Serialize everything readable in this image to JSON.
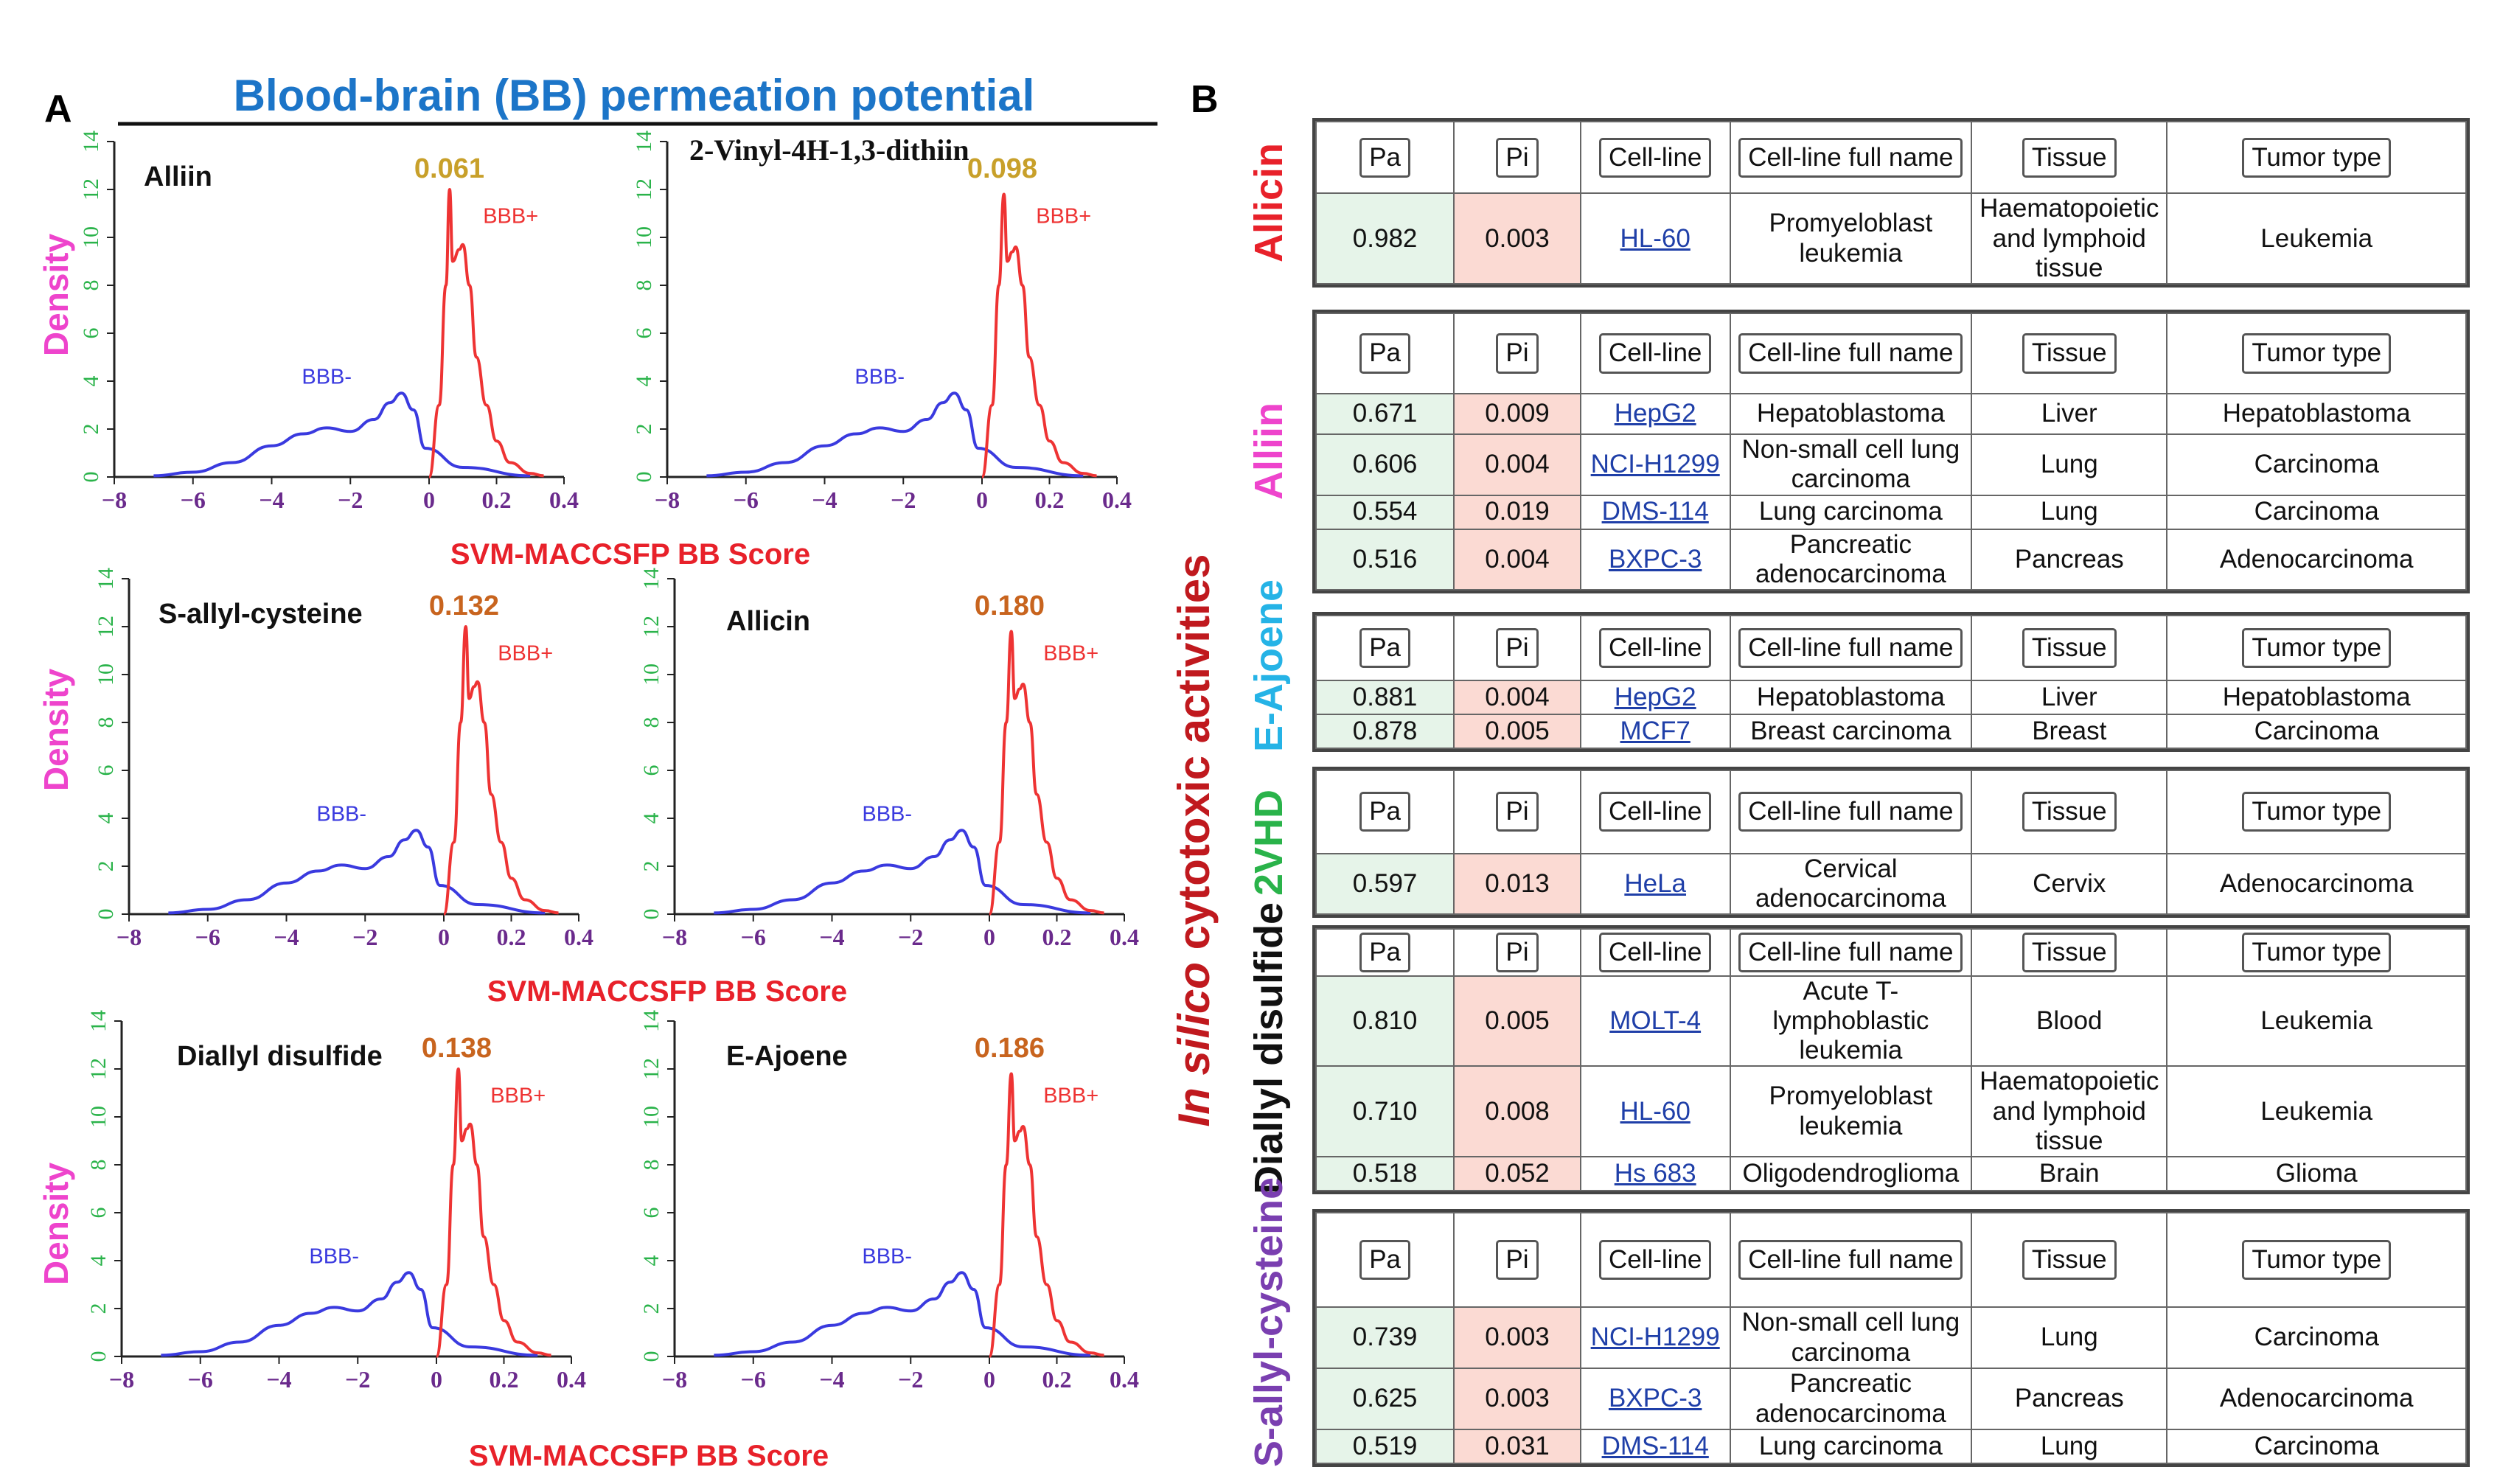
{
  "panel_a": {
    "letter": "A",
    "title": "Blood-brain (BB) permeation potential",
    "ylabel": "Density",
    "xlabel": "SVM-MACCSFP BB Score",
    "neg_label": "BBB-",
    "pos_label": "BBB+"
  },
  "panel_b": {
    "letter": "B",
    "side_title_italic": "In silico",
    "side_title_rest": " cytotoxic activities",
    "headers": [
      "Pa",
      "Pi",
      "Cell-line",
      "Cell-line full name",
      "Tissue",
      "Tumor type"
    ],
    "compounds": [
      {
        "name": "Allicin",
        "color": "#e8212a",
        "rows": [
          [
            "0.982",
            "0.003",
            "HL-60",
            "Promyeloblast leukemia",
            "Haematopoietic and lymphoid tissue",
            "Leukemia"
          ]
        ]
      },
      {
        "name": "Alliin",
        "color": "#ee44cc",
        "rows": [
          [
            "0.671",
            "0.009",
            "HepG2",
            "Hepatoblastoma",
            "Liver",
            "Hepatoblastoma"
          ],
          [
            "0.606",
            "0.004",
            "NCI-H1299",
            "Non-small cell lung carcinoma",
            "Lung",
            "Carcinoma"
          ],
          [
            "0.554",
            "0.019",
            "DMS-114",
            "Lung carcinoma",
            "Lung",
            "Carcinoma"
          ],
          [
            "0.516",
            "0.004",
            "BXPC-3",
            "Pancreatic adenocarcinoma",
            "Pancreas",
            "Adenocarcinoma"
          ]
        ]
      },
      {
        "name": "E-Ajoene",
        "color": "#25b3e6",
        "rows": [
          [
            "0.881",
            "0.004",
            "HepG2",
            "Hepatoblastoma",
            "Liver",
            "Hepatoblastoma"
          ],
          [
            "0.878",
            "0.005",
            "MCF7",
            "Breast carcinoma",
            "Breast",
            "Carcinoma"
          ]
        ]
      },
      {
        "name": "2VHD",
        "color": "#2ab34a",
        "rows": [
          [
            "0.597",
            "0.013",
            "HeLa",
            "Cervical adenocarcinoma",
            "Cervix",
            "Adenocarcinoma"
          ]
        ]
      },
      {
        "name": "Diallyl disulfide",
        "color": "#111111",
        "rows": [
          [
            "0.810",
            "0.005",
            "MOLT-4",
            "Acute T-lymphoblastic leukemia",
            "Blood",
            "Leukemia"
          ],
          [
            "0.710",
            "0.008",
            "HL-60",
            "Promyeloblast leukemia",
            "Haematopoietic and lymphoid tissue",
            "Leukemia"
          ],
          [
            "0.518",
            "0.052",
            "Hs 683",
            "Oligodendroglioma",
            "Brain",
            "Glioma"
          ]
        ]
      },
      {
        "name": "S-allyl-cysteine",
        "color": "#7a3fb0",
        "rows": [
          [
            "0.739",
            "0.003",
            "NCI-H1299",
            "Non-small cell lung carcinoma",
            "Lung",
            "Carcinoma"
          ],
          [
            "0.625",
            "0.003",
            "BXPC-3",
            "Pancreatic adenocarcinoma",
            "Pancreas",
            "Adenocarcinoma"
          ],
          [
            "0.519",
            "0.031",
            "DMS-114",
            "Lung carcinoma",
            "Lung",
            "Carcinoma"
          ]
        ]
      }
    ]
  },
  "colors": {
    "neg_curve": "#3a3adf",
    "pos_curve": "#ee3333",
    "y_ticks": "#2ab34a",
    "x_ticks": "#6a2a8c",
    "density_label": "#ee44cc",
    "xlabel": "#e8212a",
    "title": "#1c75c8",
    "threshold_gold": "#c8a02a",
    "threshold_orange": "#c8641e",
    "side_title": "#c0191e"
  },
  "chart_data": [
    {
      "type": "line",
      "title": "Alliin",
      "threshold": "0.061",
      "xlim": [
        -8,
        0.4
      ],
      "ylim": [
        0,
        14
      ],
      "xticks": [
        "−8",
        "−6",
        "−4",
        "−2",
        "0",
        "0.2",
        "0.4"
      ],
      "yticks": [
        "0",
        "2",
        "4",
        "6",
        "8",
        "10",
        "12",
        "14"
      ],
      "series": [
        {
          "name": "BBB-",
          "x": [
            -7,
            -6,
            -5,
            -4,
            -3.2,
            -2.6,
            -2,
            -1.4,
            -1,
            -0.7,
            -0.4,
            -0.1,
            0.1,
            0.3
          ],
          "y": [
            0.05,
            0.2,
            0.6,
            1.3,
            1.8,
            2.05,
            1.9,
            2.4,
            3.1,
            3.5,
            2.8,
            1.2,
            0.4,
            0.05
          ]
        },
        {
          "name": "BBB+",
          "x": [
            0,
            0.03,
            0.05,
            0.061,
            0.07,
            0.09,
            0.1,
            0.12,
            0.14,
            0.17,
            0.2,
            0.24,
            0.3,
            0.34
          ],
          "y": [
            0,
            3,
            8,
            12,
            9,
            9.5,
            9.7,
            8,
            5,
            3,
            1.5,
            0.6,
            0.15,
            0.05
          ]
        }
      ]
    },
    {
      "type": "line",
      "title": "2-Vinyl-4H-1,3-dithiin",
      "threshold": "0.098",
      "xlim": [
        -8,
        0.4
      ],
      "ylim": [
        0,
        14
      ],
      "xticks": [
        "−8",
        "−6",
        "−4",
        "−2",
        "0",
        "0.2",
        "0.4"
      ],
      "yticks": [
        "0",
        "2",
        "4",
        "6",
        "8",
        "10",
        "12",
        "14"
      ],
      "series": [
        {
          "name": "BBB-",
          "x": [
            -7,
            -6,
            -5,
            -4,
            -3.2,
            -2.6,
            -2,
            -1.4,
            -1,
            -0.7,
            -0.4,
            -0.1,
            0.1,
            0.3
          ],
          "y": [
            0.05,
            0.2,
            0.6,
            1.3,
            1.8,
            2.05,
            1.9,
            2.4,
            3.1,
            3.5,
            2.8,
            1.2,
            0.4,
            0.05
          ]
        },
        {
          "name": "BBB+",
          "x": [
            0,
            0.03,
            0.05,
            0.065,
            0.075,
            0.09,
            0.1,
            0.12,
            0.14,
            0.17,
            0.2,
            0.24,
            0.3,
            0.34
          ],
          "y": [
            0,
            3,
            8,
            11.8,
            9,
            9.4,
            9.6,
            8,
            5,
            3,
            1.5,
            0.6,
            0.15,
            0.05
          ]
        }
      ]
    },
    {
      "type": "line",
      "title": "S-allyl-cysteine",
      "threshold": "0.132",
      "xlim": [
        -8,
        0.4
      ],
      "ylim": [
        0,
        14
      ],
      "xticks": [
        "−8",
        "−6",
        "−4",
        "−2",
        "0",
        "0.2",
        "0.4"
      ],
      "yticks": [
        "0",
        "2",
        "4",
        "6",
        "8",
        "10",
        "12",
        "14"
      ],
      "series": [
        {
          "name": "BBB-",
          "x": [
            -7,
            -6,
            -5,
            -4,
            -3.2,
            -2.6,
            -2,
            -1.4,
            -1,
            -0.7,
            -0.4,
            -0.1,
            0.1,
            0.3
          ],
          "y": [
            0.05,
            0.2,
            0.6,
            1.3,
            1.8,
            2.05,
            1.9,
            2.4,
            3.1,
            3.5,
            2.8,
            1.2,
            0.4,
            0.05
          ]
        },
        {
          "name": "BBB+",
          "x": [
            0,
            0.03,
            0.05,
            0.065,
            0.075,
            0.09,
            0.1,
            0.12,
            0.14,
            0.17,
            0.2,
            0.24,
            0.3,
            0.34
          ],
          "y": [
            0,
            3,
            8,
            12,
            9,
            9.5,
            9.7,
            8,
            5,
            3,
            1.5,
            0.6,
            0.15,
            0.05
          ]
        }
      ]
    },
    {
      "type": "line",
      "title": "Allicin",
      "threshold": "0.180",
      "xlim": [
        -8,
        0.4
      ],
      "ylim": [
        0,
        14
      ],
      "xticks": [
        "−8",
        "−6",
        "−4",
        "−2",
        "0",
        "0.2",
        "0.4"
      ],
      "yticks": [
        "0",
        "2",
        "4",
        "6",
        "8",
        "10",
        "12",
        "14"
      ],
      "series": [
        {
          "name": "BBB-",
          "x": [
            -7,
            -6,
            -5,
            -4,
            -3.2,
            -2.6,
            -2,
            -1.4,
            -1,
            -0.7,
            -0.4,
            -0.1,
            0.1,
            0.3
          ],
          "y": [
            0.05,
            0.2,
            0.6,
            1.3,
            1.8,
            2.05,
            1.9,
            2.4,
            3.1,
            3.5,
            2.8,
            1.2,
            0.4,
            0.05
          ]
        },
        {
          "name": "BBB+",
          "x": [
            0,
            0.03,
            0.05,
            0.065,
            0.075,
            0.09,
            0.1,
            0.12,
            0.14,
            0.17,
            0.2,
            0.24,
            0.3,
            0.34
          ],
          "y": [
            0,
            3,
            8,
            11.8,
            9,
            9.4,
            9.6,
            8,
            5,
            3,
            1.5,
            0.6,
            0.15,
            0.05
          ]
        }
      ]
    },
    {
      "type": "line",
      "title": "Diallyl disulfide",
      "threshold": "0.138",
      "xlim": [
        -8,
        0.4
      ],
      "ylim": [
        0,
        14
      ],
      "xticks": [
        "−8",
        "−6",
        "−4",
        "−2",
        "0",
        "0.2",
        "0.4"
      ],
      "yticks": [
        "0",
        "2",
        "4",
        "6",
        "8",
        "10",
        "12",
        "14"
      ],
      "series": [
        {
          "name": "BBB-",
          "x": [
            -7,
            -6,
            -5,
            -4,
            -3.2,
            -2.6,
            -2,
            -1.4,
            -1,
            -0.7,
            -0.4,
            -0.1,
            0.1,
            0.3
          ],
          "y": [
            0.05,
            0.2,
            0.6,
            1.3,
            1.8,
            2.05,
            1.9,
            2.4,
            3.1,
            3.5,
            2.8,
            1.2,
            0.4,
            0.05
          ]
        },
        {
          "name": "BBB+",
          "x": [
            0,
            0.03,
            0.05,
            0.065,
            0.075,
            0.09,
            0.1,
            0.12,
            0.14,
            0.17,
            0.2,
            0.24,
            0.3,
            0.34
          ],
          "y": [
            0,
            3,
            8,
            12,
            9,
            9.5,
            9.7,
            8,
            5,
            3,
            1.5,
            0.6,
            0.15,
            0.05
          ]
        }
      ]
    },
    {
      "type": "line",
      "title": "E-Ajoene",
      "threshold": "0.186",
      "xlim": [
        -8,
        0.4
      ],
      "ylim": [
        0,
        14
      ],
      "xticks": [
        "−8",
        "−6",
        "−4",
        "−2",
        "0",
        "0.2",
        "0.4"
      ],
      "yticks": [
        "0",
        "2",
        "4",
        "6",
        "8",
        "10",
        "12",
        "14"
      ],
      "series": [
        {
          "name": "BBB-",
          "x": [
            -7,
            -6,
            -5,
            -4,
            -3.2,
            -2.6,
            -2,
            -1.4,
            -1,
            -0.7,
            -0.4,
            -0.1,
            0.1,
            0.3
          ],
          "y": [
            0.05,
            0.2,
            0.6,
            1.3,
            1.8,
            2.05,
            1.9,
            2.4,
            3.1,
            3.5,
            2.8,
            1.2,
            0.4,
            0.05
          ]
        },
        {
          "name": "BBB+",
          "x": [
            0,
            0.03,
            0.05,
            0.065,
            0.075,
            0.09,
            0.1,
            0.12,
            0.14,
            0.17,
            0.2,
            0.24,
            0.3,
            0.34
          ],
          "y": [
            0,
            3,
            8,
            11.8,
            9,
            9.4,
            9.6,
            8,
            5,
            3,
            1.5,
            0.6,
            0.15,
            0.05
          ]
        }
      ]
    }
  ]
}
